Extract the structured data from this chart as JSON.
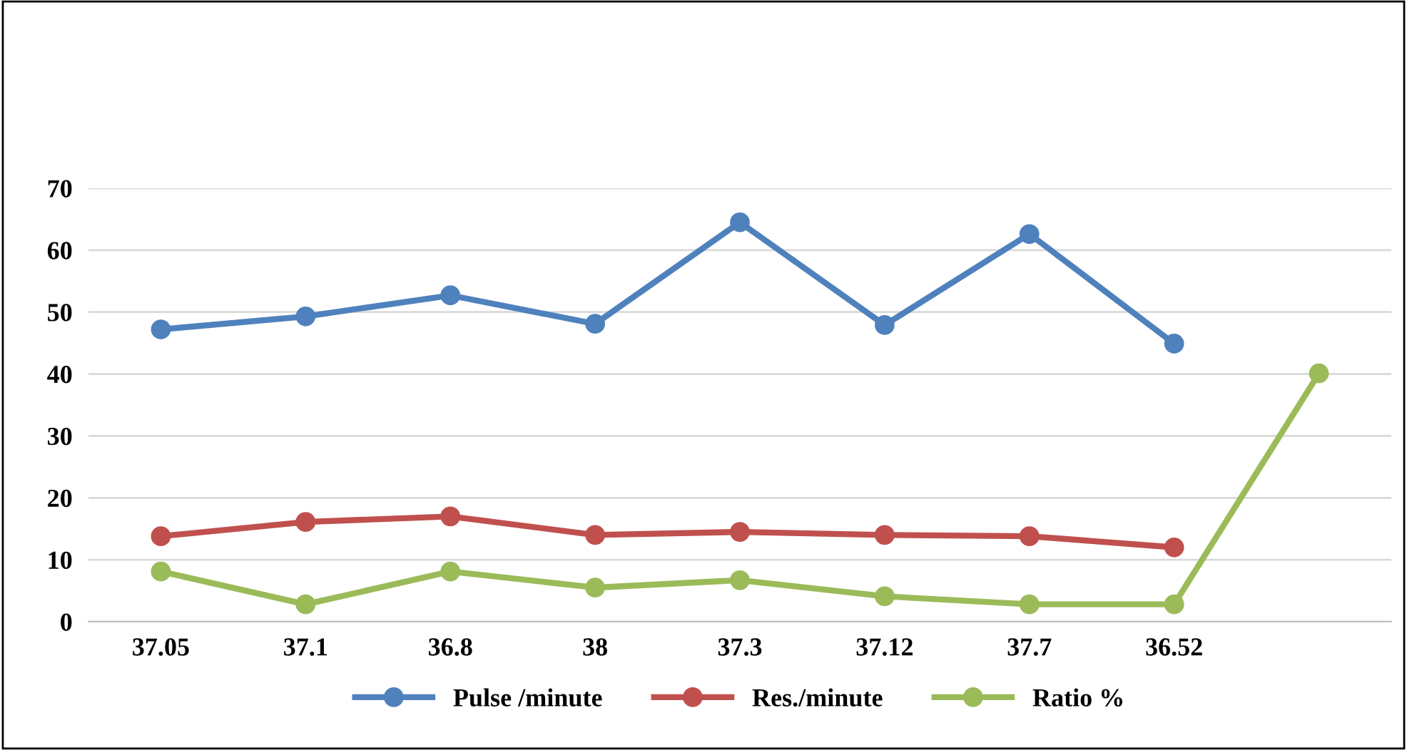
{
  "chart_data": {
    "type": "line",
    "categories": [
      "37.05",
      "37.1",
      "36.8",
      "38",
      "37.3",
      "37.12",
      "37.7",
      "36.52",
      null
    ],
    "series": [
      {
        "name": "Pulse /minute",
        "color": "#4f81bd",
        "values": [
          47.2,
          49.3,
          52.7,
          48.1,
          64.5,
          47.9,
          62.6,
          44.9,
          null
        ]
      },
      {
        "name": "Res./minute",
        "color": "#c0504d",
        "values": [
          13.8,
          16.1,
          17.0,
          14.0,
          14.5,
          14.0,
          13.8,
          12.0,
          null
        ]
      },
      {
        "name": "Ratio %",
        "color": "#9bbb59",
        "values": [
          8.1,
          2.8,
          8.1,
          5.5,
          6.7,
          4.1,
          2.8,
          2.8,
          40.1
        ]
      }
    ],
    "ylim": [
      0,
      70
    ],
    "yticks": [
      0,
      10,
      20,
      30,
      40,
      50,
      60,
      70
    ],
    "grid": "y",
    "legend": "bottom",
    "marker": "circle",
    "line_style": "solid"
  }
}
